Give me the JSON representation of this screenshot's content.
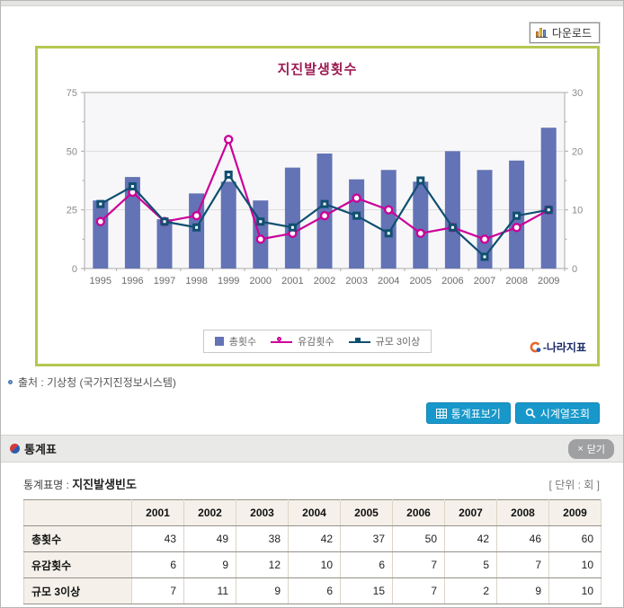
{
  "toolbar": {
    "download_label": "다운로드"
  },
  "chart": {
    "title": "지진발생횟수",
    "brand_label": "-나라지표",
    "colors": {
      "bar": "#6373b5",
      "felt_line": "#cc0099",
      "mag3_line": "#104f70",
      "panel_border": "#b3c851",
      "title": "#9c1a52"
    }
  },
  "chart_data": {
    "type": "bar",
    "categories": [
      "1995",
      "1996",
      "1997",
      "1998",
      "1999",
      "2000",
      "2001",
      "2002",
      "2003",
      "2004",
      "2005",
      "2006",
      "2007",
      "2008",
      "2009"
    ],
    "series": [
      {
        "name": "총횟수",
        "type": "bar",
        "axis": "left",
        "color": "#6373b5",
        "values": [
          29,
          39,
          21,
          32,
          37,
          29,
          43,
          49,
          38,
          42,
          37,
          50,
          42,
          46,
          60
        ]
      },
      {
        "name": "유감횟수",
        "type": "line",
        "axis": "right",
        "marker": "circle",
        "color": "#cc0099",
        "values": [
          8,
          13,
          8,
          9,
          22,
          5,
          6,
          9,
          12,
          10,
          6,
          7,
          5,
          7,
          10
        ]
      },
      {
        "name": "규모 3이상",
        "type": "line",
        "axis": "right",
        "marker": "square",
        "color": "#104f70",
        "values": [
          11,
          14,
          8,
          7,
          16,
          8,
          7,
          11,
          9,
          6,
          15,
          7,
          2,
          9,
          10
        ]
      }
    ],
    "title": "지진발생횟수",
    "xlabel": "",
    "ylabel": "",
    "left_axis": {
      "ticks": [
        0,
        25,
        50,
        75
      ],
      "lim": [
        0,
        75
      ]
    },
    "right_axis": {
      "ticks": [
        0,
        10,
        20,
        30
      ],
      "lim": [
        0,
        30
      ]
    },
    "grid": "horizontal",
    "legend_position": "bottom"
  },
  "source": {
    "text": "출처 : 기상청 (국가지진정보시스템)"
  },
  "actions": {
    "view_table": "통계표보기",
    "time_series": "시계열조회"
  },
  "stats_section": {
    "title": "통계표",
    "close_label": "닫기",
    "table_name_label": "통계표명 :",
    "table_name": "지진발생빈도",
    "unit_label": "[ 단위 : 회 ]",
    "table": {
      "columns": [
        "2001",
        "2002",
        "2003",
        "2004",
        "2005",
        "2006",
        "2007",
        "2008",
        "2009"
      ],
      "rows": [
        {
          "label": "총횟수",
          "values": [
            43,
            49,
            38,
            42,
            37,
            50,
            42,
            46,
            60
          ]
        },
        {
          "label": "유감횟수",
          "values": [
            6,
            9,
            12,
            10,
            6,
            7,
            5,
            7,
            10
          ]
        },
        {
          "label": "규모 3이상",
          "values": [
            7,
            11,
            9,
            6,
            15,
            7,
            2,
            9,
            10
          ]
        }
      ]
    }
  }
}
